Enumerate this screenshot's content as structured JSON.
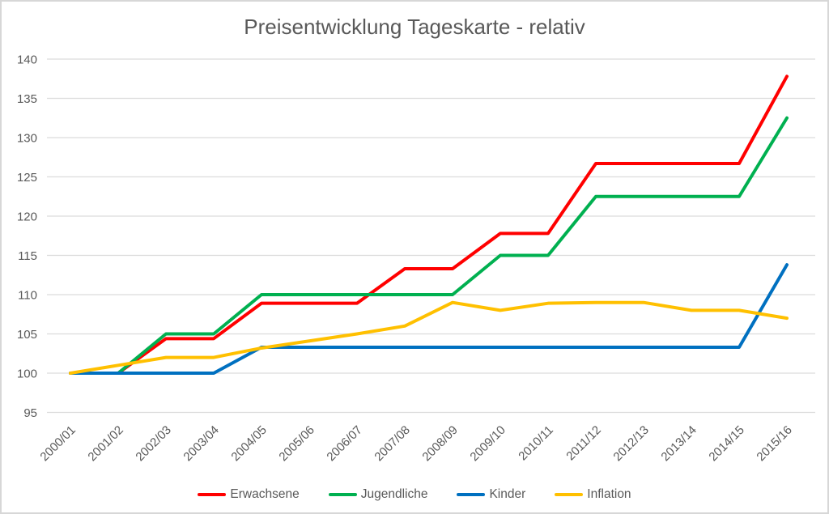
{
  "window": {
    "background": "#ffffff",
    "border_color": "#d7d7d7"
  },
  "chart_data": {
    "type": "line",
    "title": "Preisentwicklung Tageskarte - relativ",
    "title_color": "#595959",
    "categories": [
      "2000/01",
      "2001/02",
      "2002/03",
      "2003/04",
      "2004/05",
      "2005/06",
      "2006/07",
      "2007/08",
      "2008/09",
      "2009/10",
      "2010/11",
      "2011/12",
      "2012/13",
      "2013/14",
      "2014/15",
      "2015/16"
    ],
    "series": [
      {
        "name": "Erwachsene",
        "color": "#ff0000",
        "values": [
          100,
          100,
          104.4,
          104.4,
          108.9,
          108.9,
          108.9,
          113.3,
          113.3,
          117.8,
          117.8,
          126.7,
          126.7,
          126.7,
          126.7,
          137.8
        ]
      },
      {
        "name": "Jugendliche",
        "color": "#00b050",
        "values": [
          100,
          100,
          105,
          105,
          110,
          110,
          110,
          110,
          110,
          115,
          115,
          122.5,
          122.5,
          122.5,
          122.5,
          132.5
        ]
      },
      {
        "name": "Kinder",
        "color": "#0070c0",
        "values": [
          100,
          100,
          100,
          100,
          103.3,
          103.3,
          103.3,
          103.3,
          103.3,
          103.3,
          103.3,
          103.3,
          103.3,
          103.3,
          103.3,
          113.8
        ]
      },
      {
        "name": "Inflation",
        "color": "#ffc000",
        "values": [
          100,
          101,
          102,
          102,
          103.2,
          104.1,
          105,
          106,
          109,
          108,
          108.9,
          109,
          109,
          108,
          108,
          107
        ]
      }
    ],
    "xlabel": "",
    "ylabel": "",
    "ylim": [
      95,
      140
    ],
    "ytick_step": 5,
    "y_tick_labels": [
      "95",
      "100",
      "105",
      "110",
      "115",
      "120",
      "125",
      "130",
      "135",
      "140"
    ],
    "grid": "horizontal",
    "gridline_color": "#dcdcdc",
    "axis_label_color": "#595959",
    "x_label_rotation": -45,
    "legend_position": "bottom",
    "line_width": 4
  }
}
